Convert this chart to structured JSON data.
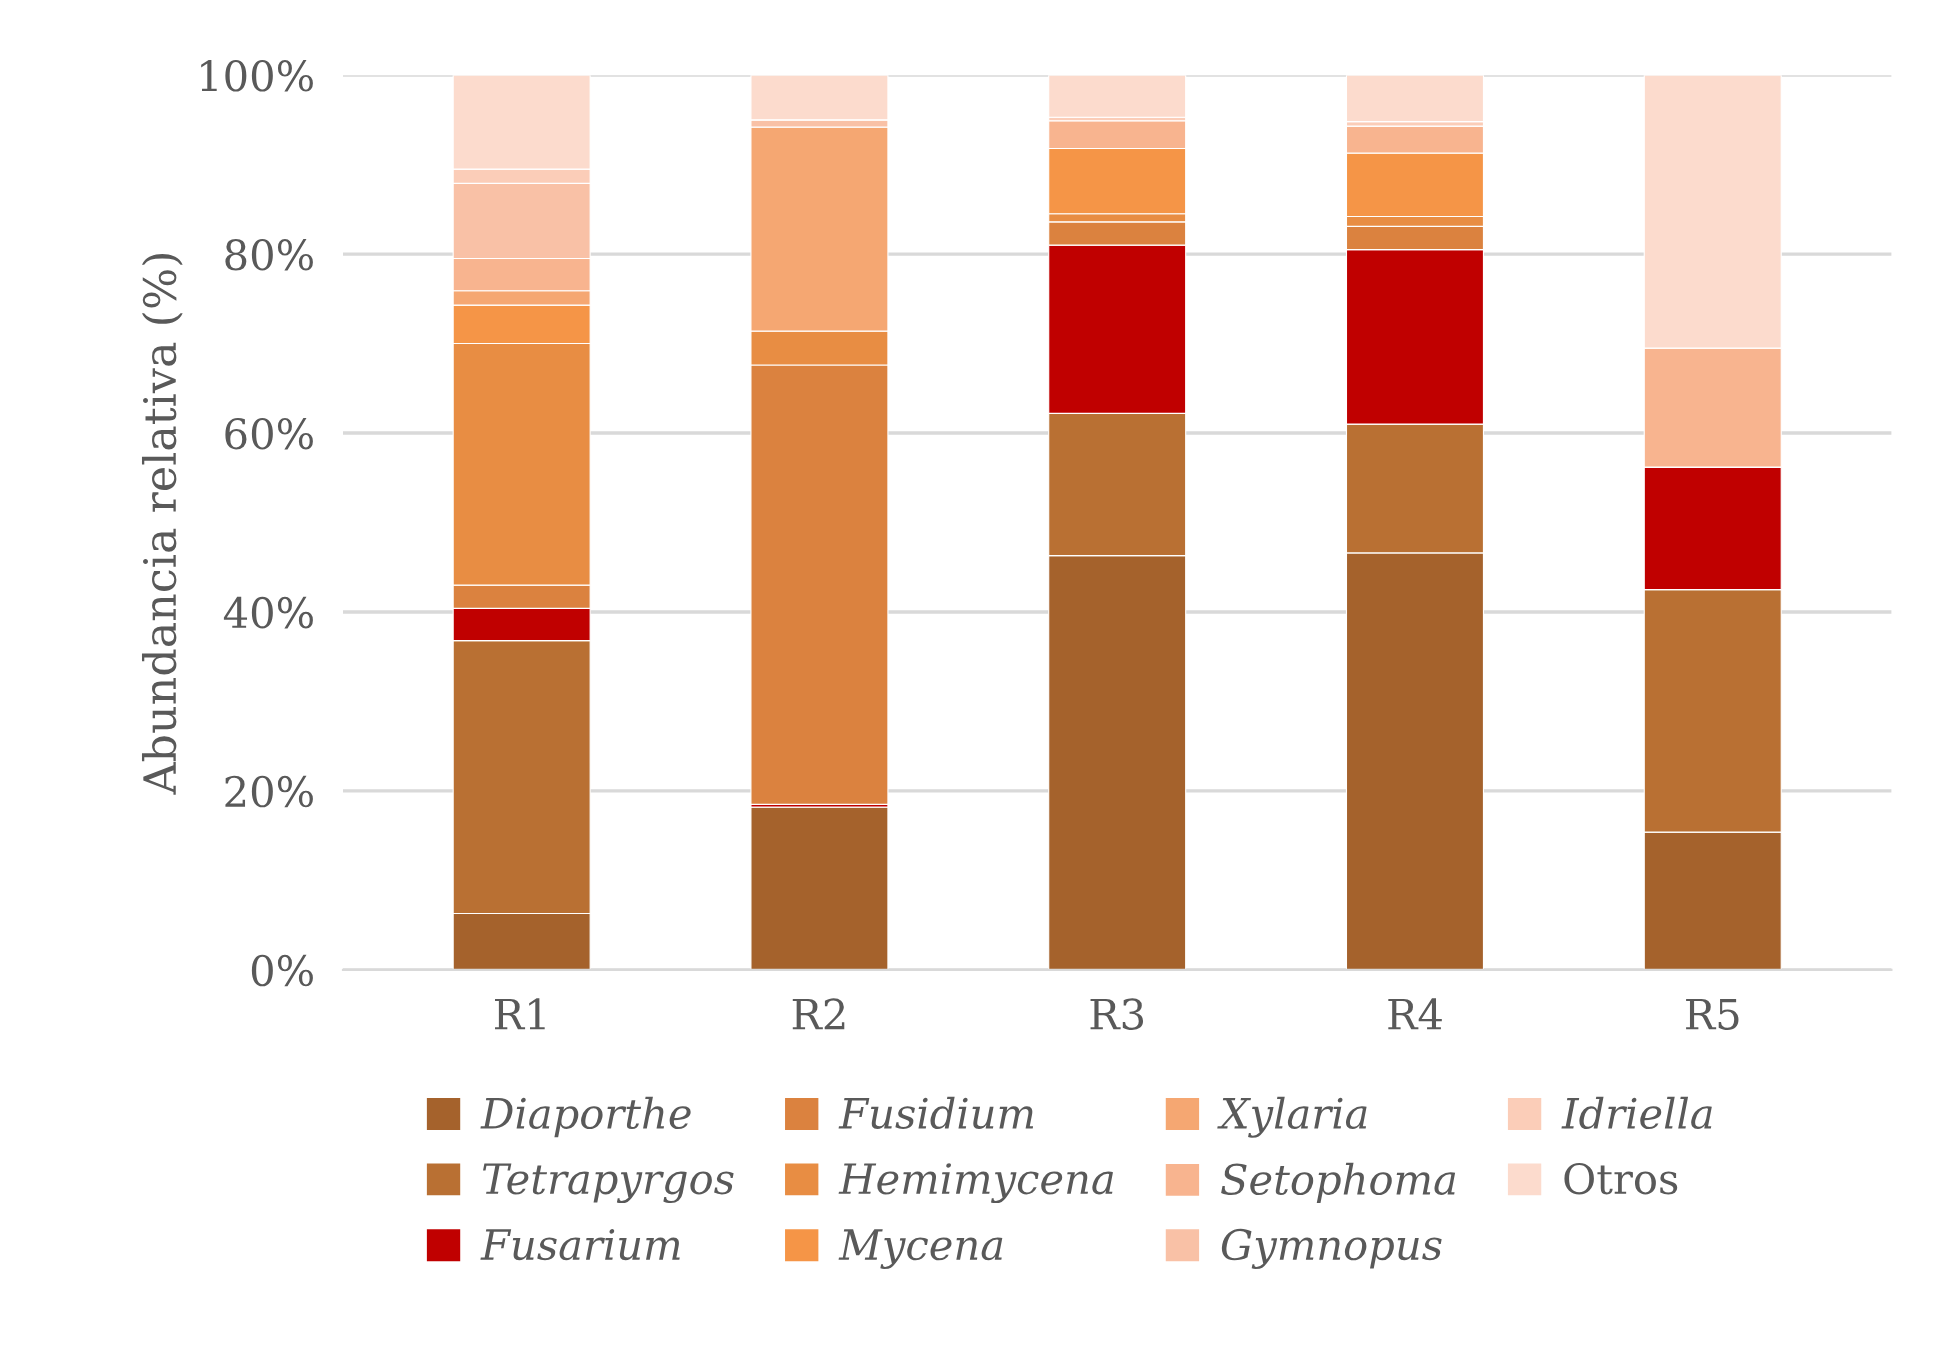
{
  "chart_data": {
    "type": "bar",
    "stacked": true,
    "ylabel": "Abundancia relativa (%)",
    "categories": [
      "R1",
      "R2",
      "R3",
      "R4",
      "R5"
    ],
    "ylim": [
      0,
      100
    ],
    "yticks": [
      {
        "value": 0,
        "label": "0%"
      },
      {
        "value": 20,
        "label": "20%"
      },
      {
        "value": 40,
        "label": "40%"
      },
      {
        "value": 60,
        "label": "60%"
      },
      {
        "value": 80,
        "label": "80%"
      },
      {
        "value": 100,
        "label": "100%"
      }
    ],
    "grid": "y",
    "legend": "bottom",
    "series": [
      {
        "name": "Diaporthe",
        "color": "#a5622c",
        "values": [
          6.3,
          18.2,
          46.3,
          46.6,
          15.4
        ]
      },
      {
        "name": "Tetrapyrgos",
        "color": "#b97033",
        "values": [
          30.5,
          0,
          15.9,
          14.4,
          27.1
        ]
      },
      {
        "name": "Fusarium",
        "color": "#c00000",
        "values": [
          3.6,
          0.3,
          18.8,
          19.5,
          13.7
        ]
      },
      {
        "name": "Fusidium",
        "color": "#db823f",
        "values": [
          2.6,
          49.1,
          2.6,
          2.6,
          0
        ]
      },
      {
        "name": "Hemimycena",
        "color": "#e88d43",
        "values": [
          27.0,
          3.8,
          0.9,
          1.1,
          0
        ]
      },
      {
        "name": "Mycena",
        "color": "#f59547",
        "values": [
          4.3,
          0,
          7.3,
          7.1,
          0
        ]
      },
      {
        "name": "Xylaria",
        "color": "#f5a772",
        "values": [
          1.6,
          22.8,
          0,
          0,
          0
        ]
      },
      {
        "name": "Setophoma",
        "color": "#f8b48f",
        "values": [
          3.6,
          0,
          3.1,
          3.0,
          13.3
        ]
      },
      {
        "name": "Gymnopus",
        "color": "#f9c1a6",
        "values": [
          8.4,
          0.8,
          0,
          0,
          0
        ]
      },
      {
        "name": "Idriella",
        "color": "#fbcdb8",
        "values": [
          1.6,
          0,
          0.4,
          0.5,
          0
        ]
      },
      {
        "name": "Otros",
        "color": "#fcdbcd",
        "values": [
          10.5,
          5.0,
          4.7,
          5.2,
          30.5
        ]
      }
    ]
  }
}
